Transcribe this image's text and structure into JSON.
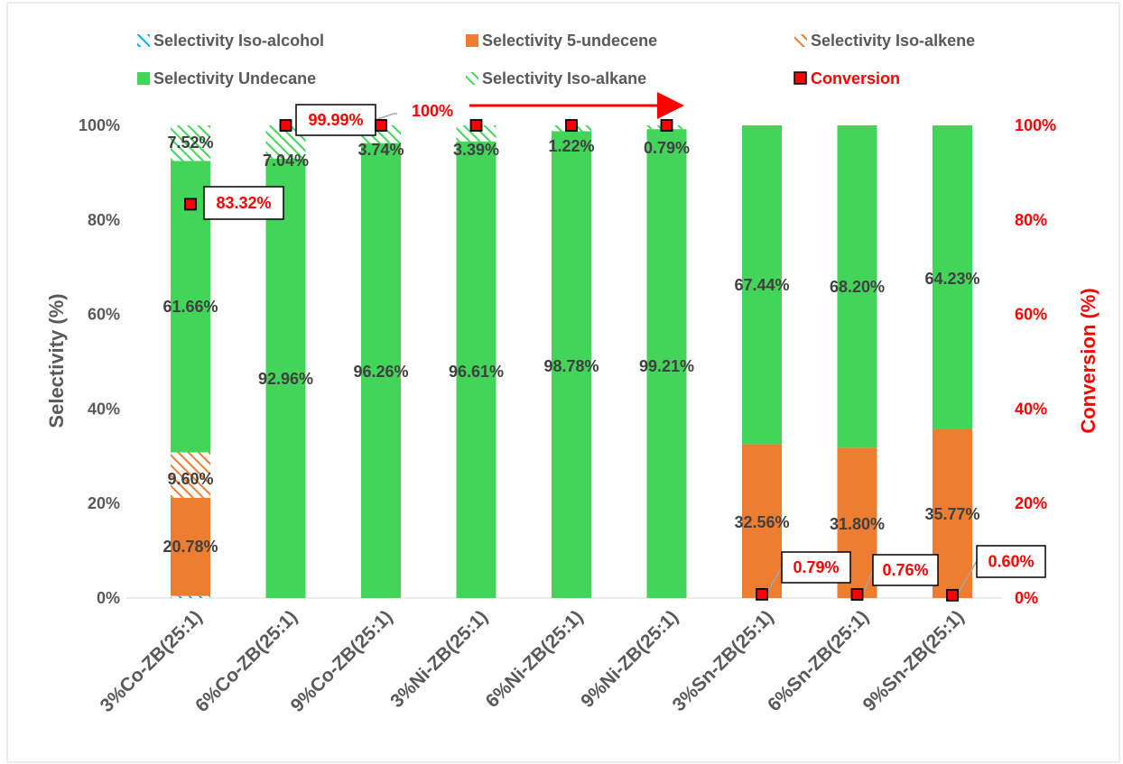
{
  "chart_data": {
    "type": "bar",
    "stacked": true,
    "categories": [
      "3%Co-ZB(25:1)",
      "6%Co-ZB(25:1)",
      "9%Co-ZB(25:1)",
      "3%Ni-ZB(25:1)",
      "6%Ni-ZB(25:1)",
      "9%Ni-ZB(25:1)",
      "3%Sn-ZB(25:1)",
      "6%Sn-ZB(25:1)",
      "9%Sn-ZB(25:1)"
    ],
    "series": [
      {
        "name": "Selectivity Iso-alcohol",
        "color": "#00b0f0",
        "pattern": "hatch",
        "values": [
          0.44,
          0,
          0,
          0,
          0,
          0,
          0,
          0,
          0
        ],
        "labels": [
          "",
          "",
          "",
          "",
          "",
          "",
          "",
          "",
          ""
        ]
      },
      {
        "name": "Selectivity 5-undecene",
        "color": "#ed7d31",
        "pattern": "solid",
        "values": [
          20.78,
          0,
          0,
          0,
          0,
          0,
          32.56,
          31.8,
          35.77
        ],
        "labels": [
          "20.78%",
          "",
          "",
          "",
          "",
          "",
          "32.56%",
          "31.80%",
          "35.77%"
        ]
      },
      {
        "name": "Selectivity Iso-alkene",
        "color": "#ed7d31",
        "pattern": "hatch",
        "values": [
          9.6,
          0,
          0,
          0,
          0,
          0,
          0,
          0,
          0
        ],
        "labels": [
          "9.60%",
          "",
          "",
          "",
          "",
          "",
          "",
          "",
          ""
        ]
      },
      {
        "name": "Selectivity Undecane",
        "color": "#43d45a",
        "pattern": "solid",
        "values": [
          61.66,
          92.96,
          96.26,
          96.61,
          98.78,
          99.21,
          67.44,
          68.2,
          64.23
        ],
        "labels": [
          "61.66%",
          "92.96%",
          "96.26%",
          "96.61%",
          "98.78%",
          "99.21%",
          "67.44%",
          "68.20%",
          "64.23%"
        ]
      },
      {
        "name": "Selectivity Iso-alkane",
        "color": "#43d45a",
        "pattern": "hatch",
        "values": [
          7.52,
          7.04,
          3.74,
          3.39,
          1.22,
          0.79,
          0,
          0,
          0
        ],
        "labels": [
          "7.52%",
          "7.04%",
          "3.74%",
          "3.39%",
          "1.22%",
          "0.79%",
          "",
          "",
          ""
        ]
      }
    ],
    "conversion": {
      "name": "Conversion",
      "color": "#ff0000",
      "values": [
        83.32,
        99.99,
        100,
        100,
        100,
        100,
        0.79,
        0.76,
        0.6
      ],
      "callouts": [
        {
          "index": 0,
          "text": "83.32%"
        },
        {
          "index": 1,
          "text": "99.99%"
        },
        {
          "index": 6,
          "text": "0.79%"
        },
        {
          "index": 7,
          "text": "0.76%"
        },
        {
          "index": 8,
          "text": "0.60%"
        }
      ],
      "arrow_label": "100%"
    },
    "ylabel": "Selectivity (%)",
    "y2label": "Conversion (%)",
    "ylim": [
      0,
      100
    ],
    "y2lim": [
      0,
      100
    ],
    "yticks": [
      "0%",
      "20%",
      "40%",
      "60%",
      "80%",
      "100%"
    ],
    "legend_position": "top",
    "grid": false
  }
}
